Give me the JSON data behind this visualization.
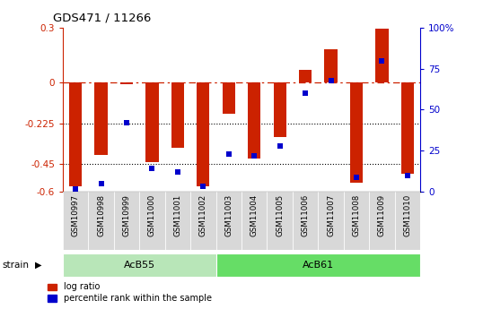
{
  "title": "GDS471 / 11266",
  "samples": [
    "GSM10997",
    "GSM10998",
    "GSM10999",
    "GSM11000",
    "GSM11001",
    "GSM11002",
    "GSM11003",
    "GSM11004",
    "GSM11005",
    "GSM11006",
    "GSM11007",
    "GSM11008",
    "GSM11009",
    "GSM11010"
  ],
  "log_ratio": [
    -0.57,
    -0.4,
    -0.01,
    -0.44,
    -0.36,
    -0.57,
    -0.17,
    -0.42,
    -0.3,
    0.07,
    0.18,
    -0.55,
    0.295,
    -0.5
  ],
  "percentile_rank": [
    1.5,
    5.0,
    42.0,
    14.0,
    12.0,
    3.0,
    23.0,
    22.0,
    28.0,
    60.0,
    68.0,
    8.5,
    80.0,
    10.0
  ],
  "ylim_left": [
    -0.6,
    0.3
  ],
  "ylim_right": [
    0,
    100
  ],
  "bar_color": "#cc2200",
  "dot_color": "#0000cc",
  "acb55_samples": 6,
  "acb55_label": "AcB55",
  "acb61_label": "AcB61",
  "strain_label": "strain",
  "legend_log_ratio": "log ratio",
  "legend_percentile": "percentile rank within the sample",
  "group1_color": "#b8e6b8",
  "group2_color": "#66dd66",
  "tick_values_left": [
    0.3,
    0.0,
    -0.225,
    -0.45,
    -0.6
  ],
  "tick_labels_left": [
    "0.3",
    "0",
    "-0.225",
    "-0.45",
    "-0.6"
  ],
  "tick_values_right": [
    100,
    75,
    50,
    25,
    0
  ],
  "tick_labels_right": [
    "100%",
    "75",
    "50",
    "25",
    "0"
  ],
  "plot_bg_color": "#ffffff",
  "xtick_bg": "#d8d8d8"
}
